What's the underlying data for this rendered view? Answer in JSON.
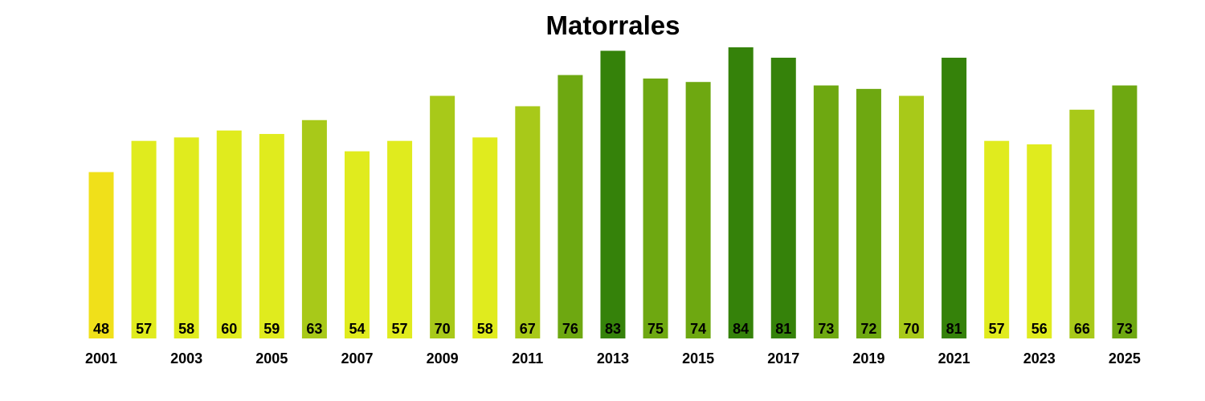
{
  "chart_data": {
    "type": "bar",
    "title": "Matorrales",
    "xlabel": "",
    "ylabel": "",
    "categories": [
      "2001",
      "2002",
      "2003",
      "2004",
      "2005",
      "2006",
      "2007",
      "2008",
      "2009",
      "2010",
      "2011",
      "2012",
      "2013",
      "2014",
      "2015",
      "2016",
      "2017",
      "2018",
      "2019",
      "2020",
      "2021",
      "2022",
      "2023",
      "2024",
      "2025"
    ],
    "tick_labels": [
      "2001",
      "2003",
      "2005",
      "2007",
      "2009",
      "2011",
      "2013",
      "2015",
      "2017",
      "2019",
      "2021",
      "2023",
      "2025"
    ],
    "values": [
      48,
      57,
      58,
      60,
      59,
      63,
      54,
      57,
      70,
      58,
      67,
      76,
      83,
      75,
      74,
      84,
      81,
      73,
      72,
      70,
      81,
      57,
      56,
      66,
      73
    ],
    "colors": [
      "#f0e01a",
      "#e0eb1e",
      "#e0eb1e",
      "#e0eb1e",
      "#e0eb1e",
      "#a8c919",
      "#e0eb1e",
      "#e0eb1e",
      "#a8c919",
      "#e0eb1e",
      "#a8c919",
      "#6ea811",
      "#35820a",
      "#6ea811",
      "#6ea811",
      "#35820a",
      "#35820a",
      "#6ea811",
      "#6ea811",
      "#a8c919",
      "#35820a",
      "#e0eb1e",
      "#e0eb1e",
      "#a8c919",
      "#6ea811"
    ],
    "ylim": [
      0,
      84
    ],
    "grid": false,
    "legend": "none"
  }
}
